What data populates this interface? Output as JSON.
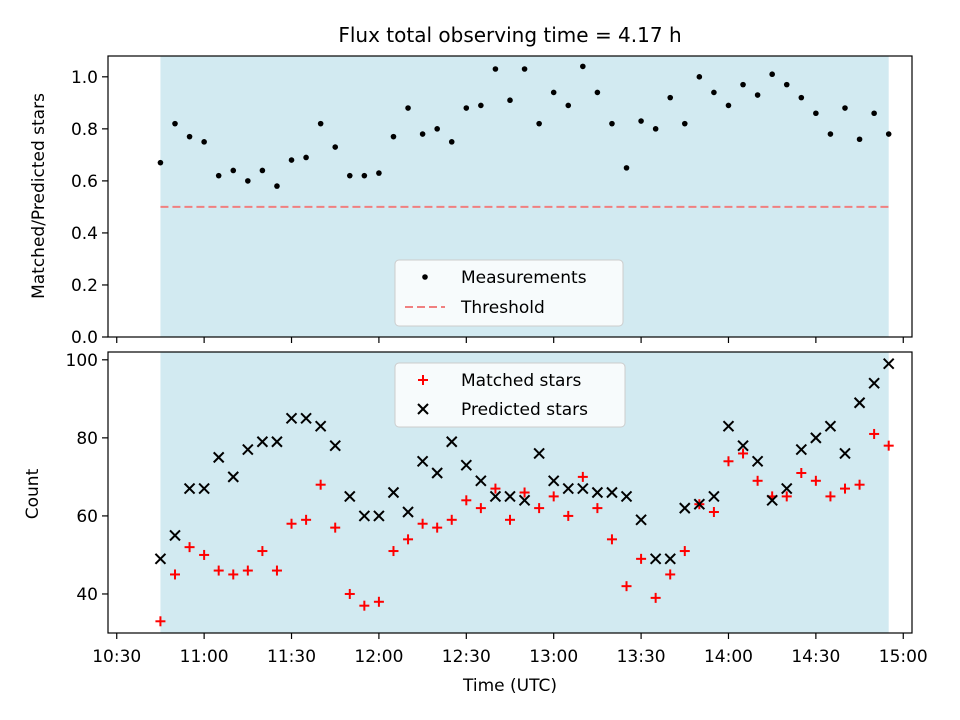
{
  "chart_data": [
    {
      "type": "scatter",
      "title": "Flux total observing time = 4.17 h",
      "ylabel": "Matched/Predicted stars",
      "xlabel": "",
      "ylim": [
        0,
        1.08
      ],
      "yticks": [
        "0.0",
        "0.2",
        "0.4",
        "0.6",
        "0.8",
        "1.0"
      ],
      "shaded_region": {
        "x_start": "10:45",
        "x_end": "14:55",
        "color": "#add8e6"
      },
      "threshold": 0.5,
      "legend": {
        "position": "lower center",
        "entries": [
          "Measurements",
          "Threshold"
        ]
      },
      "series": [
        {
          "name": "Measurements",
          "color": "#000000",
          "x": [
            "10:45",
            "10:50",
            "10:55",
            "11:00",
            "11:05",
            "11:10",
            "11:15",
            "11:20",
            "11:25",
            "11:30",
            "11:35",
            "11:40",
            "11:45",
            "11:50",
            "11:55",
            "12:00",
            "12:05",
            "12:10",
            "12:15",
            "12:20",
            "12:25",
            "12:30",
            "12:35",
            "12:40",
            "12:45",
            "12:50",
            "12:55",
            "13:00",
            "13:05",
            "13:10",
            "13:15",
            "13:20",
            "13:25",
            "13:30",
            "13:35",
            "13:40",
            "13:45",
            "13:50",
            "13:55",
            "14:00",
            "14:05",
            "14:10",
            "14:15",
            "14:20",
            "14:25",
            "14:30",
            "14:35",
            "14:40",
            "14:45",
            "14:50",
            "14:55"
          ],
          "values": [
            0.67,
            0.82,
            0.77,
            0.75,
            0.62,
            0.64,
            0.6,
            0.64,
            0.58,
            0.68,
            0.69,
            0.82,
            0.73,
            0.62,
            0.62,
            0.63,
            0.77,
            0.88,
            0.78,
            0.8,
            0.75,
            0.88,
            0.89,
            1.03,
            0.91,
            1.03,
            0.82,
            0.94,
            0.89,
            1.04,
            0.94,
            0.82,
            0.65,
            0.83,
            0.8,
            0.92,
            0.82,
            1.0,
            0.94,
            0.89,
            0.97,
            0.93,
            1.01,
            0.97,
            0.92,
            0.86,
            0.78,
            0.88,
            0.76,
            0.86,
            0.78
          ]
        },
        {
          "name": "Threshold",
          "color": "#f08080",
          "values": [
            0.5,
            0.5
          ]
        }
      ]
    },
    {
      "type": "scatter",
      "xlabel": "Time (UTC)",
      "ylabel": "Count",
      "ylim": [
        30,
        102
      ],
      "yticks": [
        "40",
        "60",
        "80",
        "100"
      ],
      "xticks": [
        "10:30",
        "11:00",
        "11:30",
        "12:00",
        "12:30",
        "13:00",
        "13:30",
        "14:00",
        "14:30",
        "15:00"
      ],
      "legend": {
        "position": "upper center",
        "entries": [
          "Matched stars",
          "Predicted stars"
        ]
      },
      "series": [
        {
          "name": "Matched stars",
          "color": "#ff0000",
          "marker": "+",
          "values": [
            33,
            45,
            52,
            50,
            46,
            45,
            46,
            51,
            46,
            58,
            59,
            68,
            57,
            40,
            37,
            38,
            51,
            54,
            58,
            57,
            59,
            64,
            62,
            67,
            59,
            66,
            62,
            65,
            60,
            70,
            62,
            54,
            42,
            49,
            39,
            45,
            51,
            63,
            61,
            74,
            76,
            69,
            65,
            65,
            71,
            69,
            65,
            67,
            68,
            81,
            78
          ]
        },
        {
          "name": "Predicted stars",
          "color": "#000000",
          "marker": "x",
          "values": [
            49,
            55,
            67,
            67,
            75,
            70,
            77,
            79,
            79,
            85,
            85,
            83,
            78,
            65,
            60,
            60,
            66,
            61,
            74,
            71,
            79,
            73,
            69,
            65,
            65,
            64,
            76,
            69,
            67,
            67,
            66,
            66,
            65,
            59,
            49,
            49,
            62,
            63,
            65,
            83,
            78,
            74,
            64,
            67,
            77,
            80,
            83,
            76,
            89,
            94,
            99
          ]
        }
      ]
    }
  ]
}
